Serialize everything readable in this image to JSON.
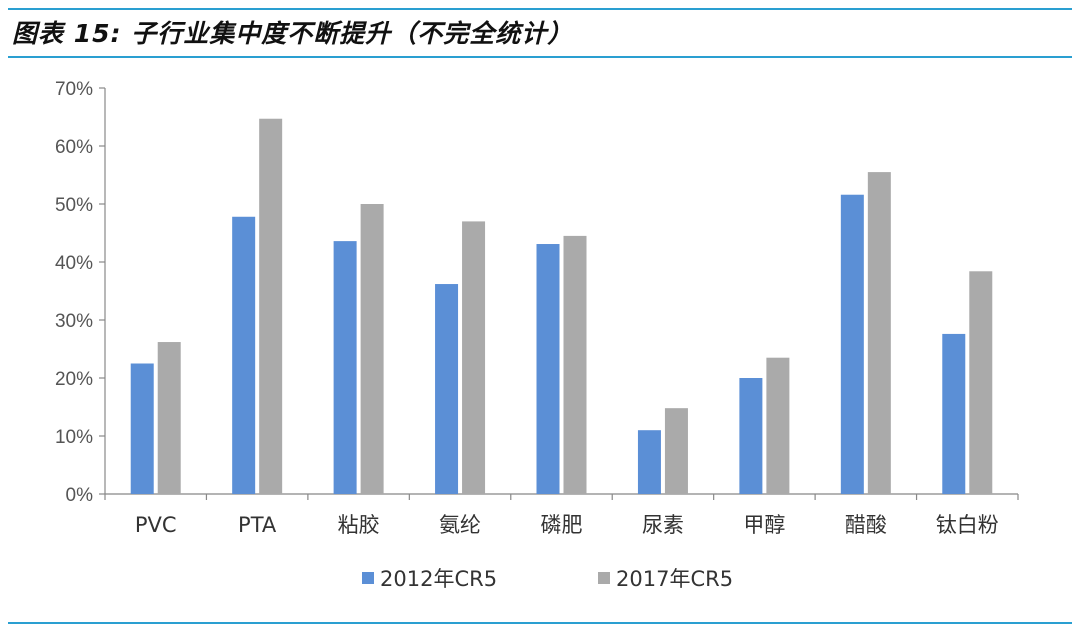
{
  "header": {
    "title": "图表 15:  子行业集中度不断提升（不完全统计）"
  },
  "colors": {
    "rule": "#2a9fd1",
    "series_2012": "#5b8fd6",
    "series_2017": "#aaaaaa"
  },
  "chart_data": {
    "type": "bar",
    "title": "",
    "xlabel": "",
    "ylabel": "",
    "categories": [
      "PVC",
      "PTA",
      "粘胶",
      "氨纶",
      "磷肥",
      "尿素",
      "甲醇",
      "醋酸",
      "钛白粉"
    ],
    "series": [
      {
        "name": "2012年CR5",
        "values": [
          22.5,
          47.8,
          43.6,
          36.2,
          43.1,
          11.0,
          20.0,
          51.6,
          27.6
        ]
      },
      {
        "name": "2017年CR5",
        "values": [
          26.2,
          64.7,
          50.0,
          47.0,
          44.5,
          14.8,
          23.5,
          55.5,
          38.4
        ]
      }
    ],
    "ylim": [
      0,
      70
    ],
    "yticks": [
      "0%",
      "10%",
      "20%",
      "30%",
      "40%",
      "50%",
      "60%",
      "70%"
    ],
    "grid": false,
    "legend_position": "bottom"
  }
}
